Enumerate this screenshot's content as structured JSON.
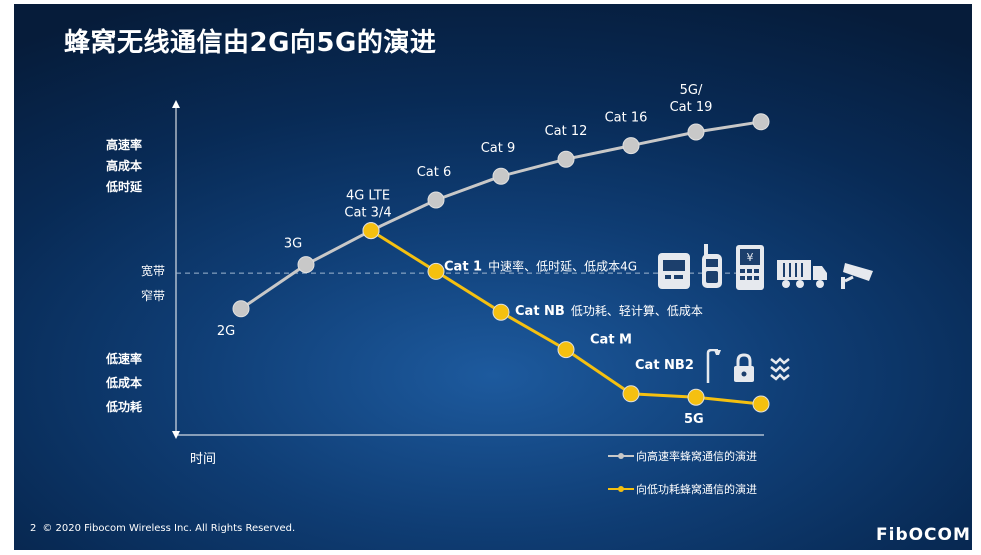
{
  "slide": {
    "title": "蜂窝无线通信由2G向5G的演进",
    "footer_page": "2",
    "footer_copyright": "© 2020 Fibocom Wireless Inc. All Rights Reserved.",
    "logo": "FibOCOM"
  },
  "chart_data": {
    "type": "line",
    "xlabel": "时间",
    "y_top_labels": [
      "高速率",
      "高成本",
      "低时延"
    ],
    "y_bottom_labels": [
      "低速率",
      "低成本",
      "低功耗"
    ],
    "band_labels": [
      "宽带",
      "窄带"
    ],
    "x": [
      1,
      2,
      3,
      4,
      5,
      6,
      7,
      8,
      9
    ],
    "series": [
      {
        "name": "向高速率蜂窝通信的演进",
        "color": "#c8c8c8",
        "x": [
          1,
          2,
          3,
          4,
          5,
          6,
          7,
          8,
          9
        ],
        "y": [
          38,
          51,
          61,
          70,
          77,
          82,
          86,
          90,
          93
        ],
        "point_labels": [
          "2G",
          "3G",
          "4G LTE\nCat 3/4",
          "Cat 6",
          "Cat 9",
          "Cat 12",
          "Cat 16",
          "5G/\nCat 19",
          ""
        ]
      },
      {
        "name": "向低功耗蜂窝通信的演进",
        "color": "#f5c010",
        "x": [
          3,
          4,
          5,
          6,
          7,
          8,
          9
        ],
        "y": [
          61,
          49,
          37,
          26,
          13,
          12,
          10
        ],
        "point_labels": [
          "",
          "Cat 1",
          "Cat NB",
          "Cat M",
          "Cat NB2",
          "5G",
          ""
        ],
        "point_notes": [
          "",
          "中速率、低时延、低成本4G",
          "低功耗、轻计算、低成本",
          "",
          "",
          "",
          ""
        ]
      }
    ],
    "ylim": [
      0,
      100
    ],
    "xlim": [
      0,
      9.2
    ],
    "band_divider_y": 48.5
  },
  "icons": {
    "wide_band": [
      "smart-meter-icon",
      "walkie-talkie-icon",
      "pos-terminal-icon",
      "truck-icon",
      "security-camera-icon"
    ],
    "narrow_band": [
      "street-light-icon",
      "padlock-icon",
      "water-wave-icon"
    ]
  }
}
